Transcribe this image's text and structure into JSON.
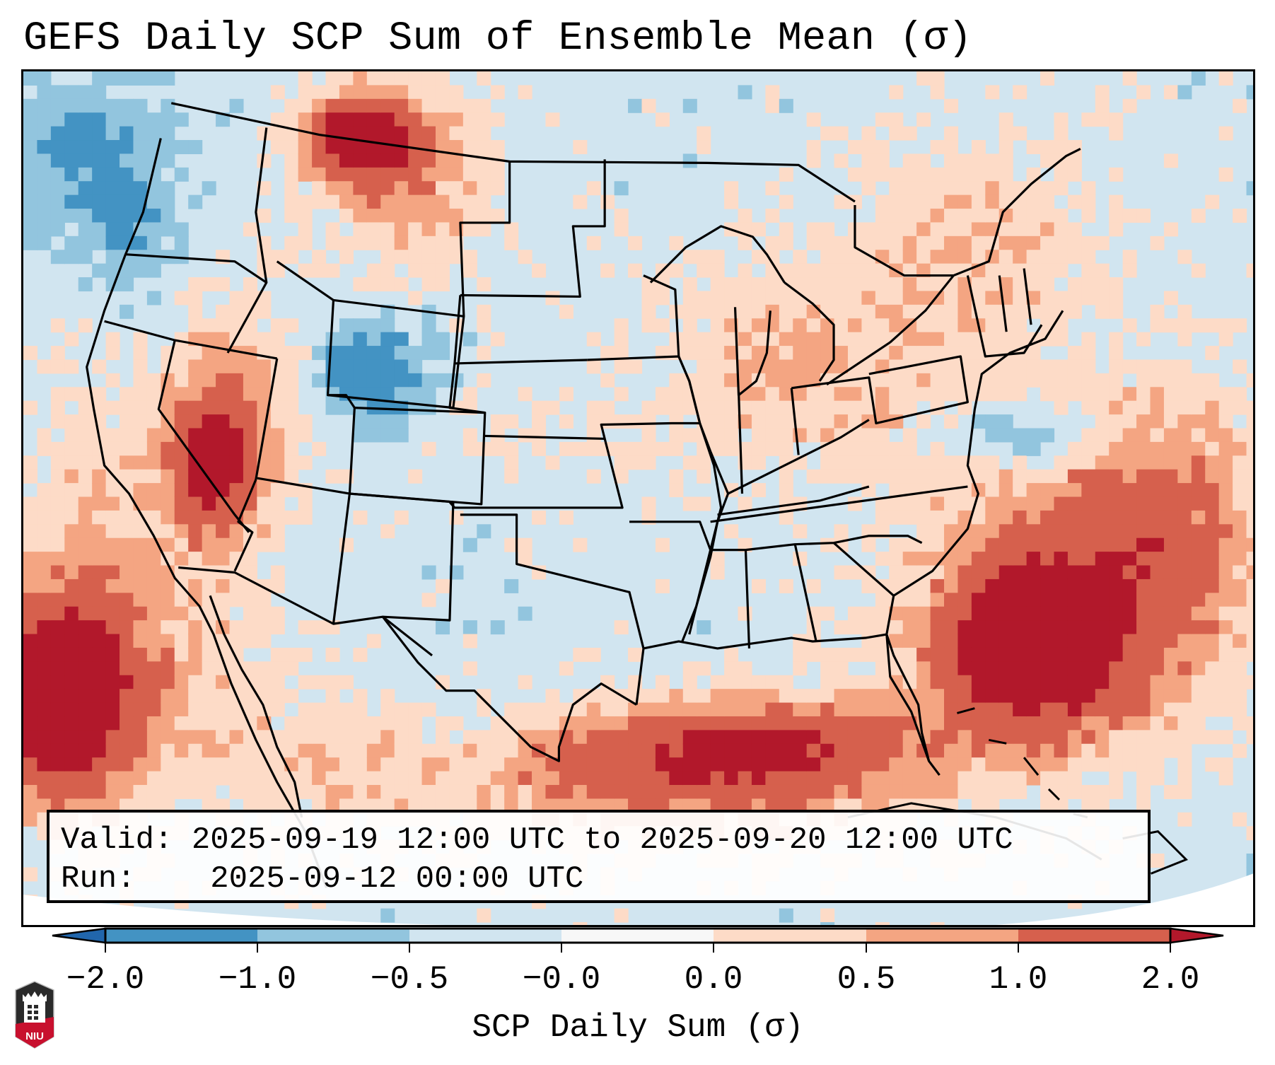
{
  "title": "GEFS Daily SCP Sum of Ensemble Mean (σ)",
  "info": {
    "valid_label": "Valid:",
    "valid_value": "2025-09-19 12:00 UTC to 2025-09-20 12:00 UTC",
    "run_label": "Run:",
    "run_value": "2025-09-12 00:00 UTC"
  },
  "logo": {
    "text": "NIU",
    "icon": "niu-university-shield-icon"
  },
  "chart_data": {
    "type": "heatmap",
    "title": "GEFS Daily SCP Sum of Ensemble Mean (σ)",
    "region": "Contiguous United States, northern Mexico, Gulf of Mexico, western Atlantic",
    "colorbar": {
      "label": "SCP Daily Sum (σ)",
      "orientation": "horizontal",
      "placement": "bottom",
      "extend": "both",
      "ticks": [
        -2.0,
        -1.0,
        -0.5,
        -0.0,
        0.0,
        0.5,
        1.0,
        2.0
      ],
      "tick_labels": [
        "−2.0",
        "−1.0",
        "−0.5",
        "−0.0",
        "0.0",
        "0.5",
        "1.0",
        "2.0"
      ],
      "bins": [
        {
          "range": [
            "-inf",
            -2.0
          ],
          "color": "#2166ac"
        },
        {
          "range": [
            -2.0,
            -1.0
          ],
          "color": "#4393c3"
        },
        {
          "range": [
            -1.0,
            -0.5
          ],
          "color": "#92c5de"
        },
        {
          "range": [
            -0.5,
            -0.0
          ],
          "color": "#d1e5f0"
        },
        {
          "range": [
            -0.0,
            0.0
          ],
          "color": "#f7f7f7"
        },
        {
          "range": [
            0.0,
            0.5
          ],
          "color": "#fddbc7"
        },
        {
          "range": [
            0.5,
            1.0
          ],
          "color": "#f4a582"
        },
        {
          "range": [
            1.0,
            2.0
          ],
          "color": "#d6604d"
        },
        {
          "range": [
            2.0,
            "inf"
          ],
          "color": "#b2182b"
        }
      ]
    },
    "background_value_class": -0.25,
    "features": [
      {
        "name": "Montana/Alberta border max",
        "value_class": 2.5,
        "extent": "moderate"
      },
      {
        "name": "Lower Colorado River / AZ-NV-CA max",
        "value_class": 1.5,
        "extent": "moderate"
      },
      {
        "name": "Eastern Pacific off Baja California max",
        "value_class": 2.5,
        "extent": "large"
      },
      {
        "name": "Gulf of Mexico positive band",
        "value_class": 1.5,
        "extent": "large"
      },
      {
        "name": "Bahamas / western Atlantic max",
        "value_class": 2.5,
        "extent": "large"
      },
      {
        "name": "Ohio Valley / Great Lakes / Northeast weak positive",
        "value_class": 0.25,
        "extent": "large"
      },
      {
        "name": "Colorado negative",
        "value_class": -0.75,
        "extent": "moderate"
      },
      {
        "name": "Off Carolinas negative",
        "value_class": -0.75,
        "extent": "small"
      },
      {
        "name": "Pacific Northwest offshore negative",
        "value_class": -0.75,
        "extent": "moderate"
      }
    ]
  }
}
